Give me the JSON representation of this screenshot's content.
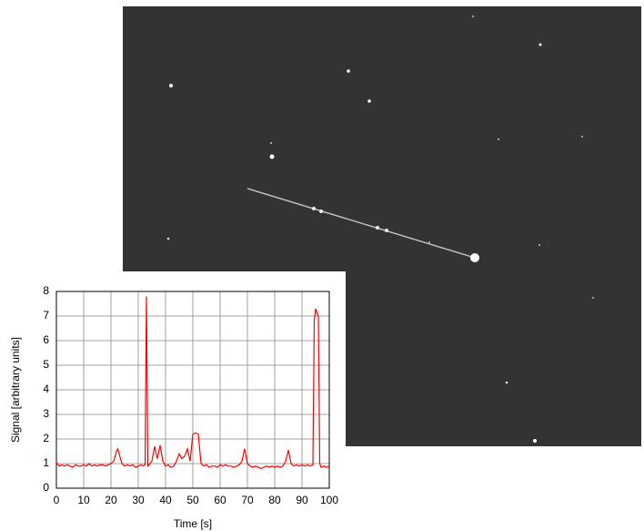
{
  "chart_data": {
    "type": "line",
    "x_label": "Time [s]",
    "y_label": "Signal [arbitrary units]",
    "color": "#ff0000",
    "grid": true,
    "xlim": [
      0,
      100
    ],
    "xticks": [
      0,
      10,
      20,
      30,
      40,
      50,
      60,
      70,
      80,
      90,
      100
    ],
    "ylim": [
      0,
      8
    ],
    "yticks": [
      0,
      1,
      2,
      3,
      4,
      5,
      6,
      7,
      8
    ],
    "x": [
      0,
      1,
      2,
      3,
      4,
      5,
      6,
      7,
      8,
      9,
      10,
      11,
      12,
      13,
      14,
      15,
      16,
      17,
      18,
      19,
      20,
      21,
      22,
      22.5,
      23,
      24,
      25,
      26,
      27,
      28,
      29,
      30,
      31,
      32,
      32.5,
      33,
      33.5,
      34,
      35,
      36,
      37,
      38,
      39,
      40,
      41,
      42,
      43,
      44,
      45,
      46,
      47,
      48,
      49,
      50,
      51,
      52,
      53,
      54,
      55,
      56,
      57,
      58,
      59,
      60,
      61,
      62,
      63,
      64,
      65,
      66,
      67,
      68,
      69,
      70,
      71,
      72,
      73,
      74,
      75,
      76,
      77,
      78,
      79,
      80,
      81,
      82,
      83,
      84,
      85,
      86,
      87,
      88,
      89,
      90,
      91,
      92,
      93,
      94,
      94.5,
      95,
      96,
      96.5,
      97,
      98,
      99,
      100
    ],
    "values": [
      1.05,
      0.9,
      0.95,
      0.9,
      0.95,
      0.9,
      0.85,
      0.95,
      0.9,
      0.9,
      0.95,
      0.9,
      1.0,
      0.9,
      0.95,
      0.9,
      0.95,
      0.95,
      0.9,
      0.95,
      1.0,
      1.1,
      1.5,
      1.6,
      1.4,
      1.0,
      0.9,
      0.95,
      0.9,
      0.95,
      0.85,
      0.9,
      0.95,
      0.9,
      0.95,
      7.8,
      0.9,
      0.95,
      1.1,
      1.7,
      1.2,
      1.75,
      1.1,
      0.9,
      0.95,
      0.85,
      0.9,
      1.1,
      1.4,
      1.2,
      1.3,
      1.6,
      1.1,
      2.2,
      2.25,
      2.2,
      1.0,
      0.9,
      0.95,
      0.85,
      0.9,
      0.9,
      0.85,
      0.95,
      0.9,
      0.95,
      0.9,
      0.9,
      0.85,
      0.9,
      0.95,
      1.1,
      1.6,
      1.0,
      0.9,
      0.85,
      0.9,
      0.85,
      0.8,
      0.85,
      0.9,
      0.85,
      0.9,
      0.85,
      0.9,
      0.85,
      0.9,
      1.1,
      1.55,
      1.0,
      0.9,
      0.95,
      0.9,
      0.95,
      0.9,
      0.95,
      0.9,
      0.95,
      6.8,
      7.3,
      7.0,
      1.0,
      0.85,
      0.9,
      0.85,
      0.9
    ]
  }
}
